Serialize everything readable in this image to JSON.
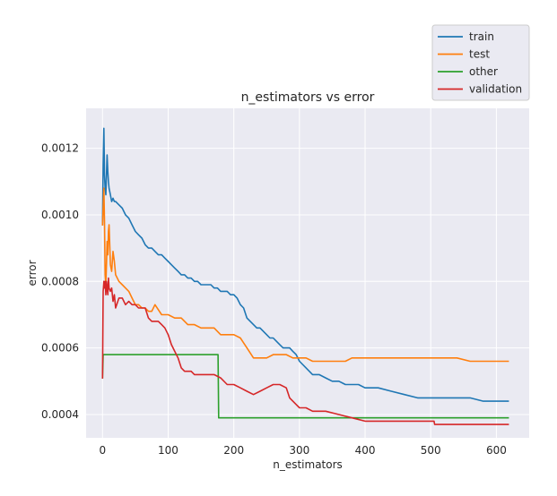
{
  "chart_data": {
    "type": "line",
    "title": "n_estimators vs error",
    "xlabel": "n_estimators",
    "ylabel": "error",
    "xlim": [
      -25,
      650
    ],
    "ylim": [
      0.00033,
      0.00132
    ],
    "xticks": [
      0,
      100,
      200,
      300,
      400,
      500,
      600
    ],
    "yticks": [
      0.0004,
      0.0006,
      0.0008,
      0.001,
      0.0012
    ],
    "ytick_labels": [
      "0.0004",
      "0.0006",
      "0.0008",
      "0.0010",
      "0.0012"
    ],
    "grid": true,
    "legend_position": "above-right",
    "series": [
      {
        "name": "train",
        "color": "#1f77b4",
        "x": [
          0,
          1,
          2,
          3,
          4,
          5,
          6,
          7,
          8,
          9,
          10,
          12,
          14,
          16,
          18,
          20,
          25,
          30,
          35,
          40,
          45,
          50,
          55,
          60,
          65,
          70,
          75,
          80,
          85,
          90,
          95,
          100,
          105,
          110,
          115,
          120,
          125,
          130,
          135,
          140,
          145,
          150,
          155,
          160,
          165,
          170,
          175,
          180,
          185,
          190,
          195,
          200,
          205,
          210,
          215,
          220,
          225,
          230,
          235,
          240,
          245,
          250,
          255,
          260,
          265,
          270,
          275,
          280,
          285,
          290,
          295,
          300,
          310,
          320,
          330,
          340,
          350,
          360,
          370,
          380,
          390,
          400,
          420,
          440,
          460,
          480,
          500,
          520,
          540,
          560,
          580,
          600,
          610,
          615,
          618
        ],
        "values": [
          0.00097,
          0.00115,
          0.00126,
          0.00112,
          0.00108,
          0.00106,
          0.00112,
          0.00118,
          0.00113,
          0.0011,
          0.00108,
          0.00106,
          0.00104,
          0.00105,
          0.00104,
          0.00104,
          0.00103,
          0.00102,
          0.001,
          0.00099,
          0.00097,
          0.00095,
          0.00094,
          0.00093,
          0.00091,
          0.0009,
          0.0009,
          0.00089,
          0.00088,
          0.00088,
          0.00087,
          0.00086,
          0.00085,
          0.00084,
          0.00083,
          0.00082,
          0.00082,
          0.00081,
          0.00081,
          0.0008,
          0.0008,
          0.00079,
          0.00079,
          0.00079,
          0.00079,
          0.00078,
          0.00078,
          0.00077,
          0.00077,
          0.00077,
          0.00076,
          0.00076,
          0.00075,
          0.00073,
          0.00072,
          0.00069,
          0.00068,
          0.00067,
          0.00066,
          0.00066,
          0.00065,
          0.00064,
          0.00063,
          0.00063,
          0.00062,
          0.00061,
          0.0006,
          0.0006,
          0.0006,
          0.00059,
          0.00058,
          0.00056,
          0.00054,
          0.00052,
          0.00052,
          0.00051,
          0.0005,
          0.0005,
          0.00049,
          0.00049,
          0.00049,
          0.00048,
          0.00048,
          0.00047,
          0.00046,
          0.00045,
          0.00045,
          0.00045,
          0.00045,
          0.00045,
          0.00044,
          0.00044,
          0.00044,
          0.00044,
          0.00044
        ]
      },
      {
        "name": "test",
        "color": "#ff7f0e",
        "x": [
          0,
          1,
          2,
          3,
          4,
          5,
          6,
          7,
          8,
          9,
          10,
          12,
          14,
          16,
          18,
          20,
          25,
          30,
          35,
          40,
          45,
          50,
          55,
          60,
          65,
          70,
          75,
          80,
          90,
          100,
          110,
          120,
          130,
          140,
          150,
          160,
          170,
          180,
          190,
          200,
          210,
          220,
          230,
          240,
          250,
          260,
          270,
          280,
          290,
          300,
          310,
          320,
          340,
          360,
          370,
          380,
          400,
          420,
          460,
          500,
          540,
          560,
          580,
          600,
          618
        ],
        "values": [
          0.00097,
          0.00102,
          0.00108,
          0.00098,
          0.00082,
          0.00079,
          0.00085,
          0.00092,
          0.00088,
          0.00095,
          0.00097,
          0.00085,
          0.00083,
          0.00089,
          0.00086,
          0.00082,
          0.0008,
          0.00079,
          0.00078,
          0.00077,
          0.00075,
          0.00073,
          0.00073,
          0.00072,
          0.00072,
          0.00071,
          0.00071,
          0.00073,
          0.0007,
          0.0007,
          0.00069,
          0.00069,
          0.00067,
          0.00067,
          0.00066,
          0.00066,
          0.00066,
          0.00064,
          0.00064,
          0.00064,
          0.00063,
          0.0006,
          0.00057,
          0.00057,
          0.00057,
          0.00058,
          0.00058,
          0.00058,
          0.00057,
          0.00057,
          0.00057,
          0.00056,
          0.00056,
          0.00056,
          0.00056,
          0.00057,
          0.00057,
          0.00057,
          0.00057,
          0.00057,
          0.00057,
          0.00056,
          0.00056,
          0.00056,
          0.00056
        ]
      },
      {
        "name": "other",
        "color": "#2ca02c",
        "x": [
          0,
          1,
          2,
          50,
          100,
          150,
          176,
          177,
          180,
          250,
          350,
          450,
          550,
          618
        ],
        "values": [
          0.00051,
          0.00058,
          0.00058,
          0.00058,
          0.00058,
          0.00058,
          0.00058,
          0.00039,
          0.00039,
          0.00039,
          0.00039,
          0.00039,
          0.00039,
          0.00039
        ]
      },
      {
        "name": "validation",
        "color": "#d62728",
        "x": [
          0,
          1,
          2,
          3,
          4,
          5,
          6,
          7,
          8,
          9,
          10,
          12,
          14,
          16,
          18,
          20,
          25,
          30,
          35,
          40,
          45,
          50,
          55,
          60,
          65,
          70,
          75,
          80,
          85,
          90,
          95,
          100,
          105,
          110,
          115,
          120,
          125,
          130,
          135,
          140,
          150,
          160,
          170,
          180,
          190,
          200,
          210,
          220,
          230,
          240,
          250,
          260,
          270,
          280,
          285,
          290,
          295,
          300,
          310,
          320,
          340,
          360,
          380,
          400,
          420,
          450,
          480,
          505,
          506,
          540,
          580,
          618
        ],
        "values": [
          0.00051,
          0.00077,
          0.0008,
          0.00078,
          0.0008,
          0.00076,
          0.0008,
          0.00078,
          0.00076,
          0.00081,
          0.00078,
          0.00077,
          0.00078,
          0.00074,
          0.00076,
          0.00072,
          0.00075,
          0.00075,
          0.00073,
          0.00074,
          0.00073,
          0.00073,
          0.00072,
          0.00072,
          0.00072,
          0.00069,
          0.00068,
          0.00068,
          0.00068,
          0.00067,
          0.00066,
          0.00064,
          0.00061,
          0.00059,
          0.00057,
          0.00054,
          0.00053,
          0.00053,
          0.00053,
          0.00052,
          0.00052,
          0.00052,
          0.00052,
          0.00051,
          0.00049,
          0.00049,
          0.00048,
          0.00047,
          0.00046,
          0.00047,
          0.00048,
          0.00049,
          0.00049,
          0.00048,
          0.00045,
          0.00044,
          0.00043,
          0.00042,
          0.00042,
          0.00041,
          0.00041,
          0.0004,
          0.00039,
          0.00038,
          0.00038,
          0.00038,
          0.00038,
          0.00038,
          0.00037,
          0.00037,
          0.00037,
          0.00037
        ]
      }
    ]
  }
}
